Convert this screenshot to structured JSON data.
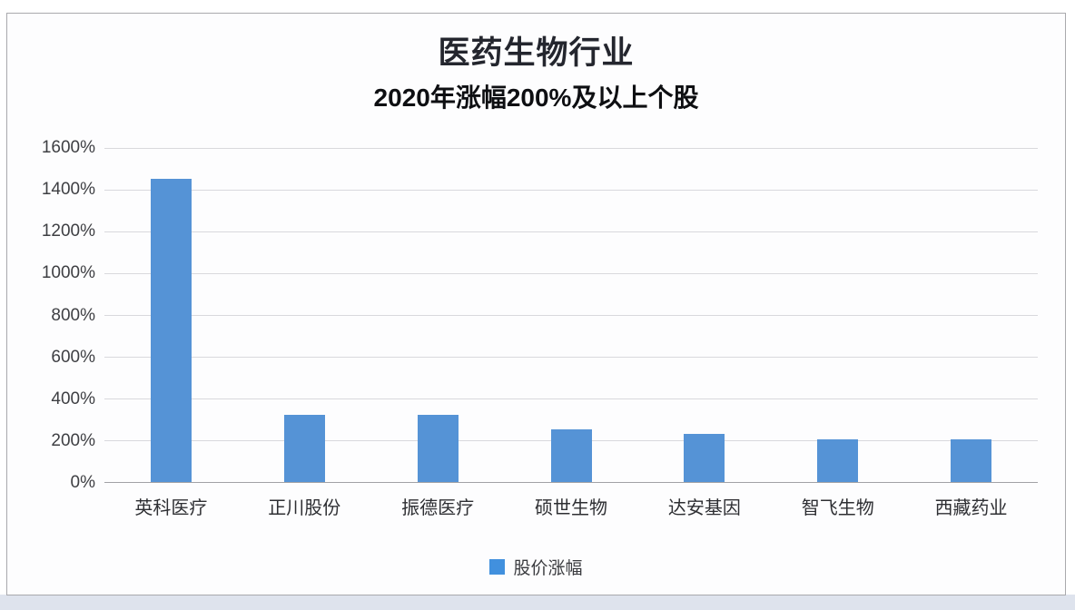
{
  "chart_data": {
    "type": "bar",
    "title": "医药生物行业",
    "subtitle": "2020年涨幅200%及以上个股",
    "categories": [
      "英科医疗",
      "正川股份",
      "振德医疗",
      "硕世生物",
      "达安基因",
      "智飞生物",
      "西藏药业"
    ],
    "series": [
      {
        "name": "股价涨幅",
        "values": [
          1450,
          320,
          320,
          250,
          230,
          205,
          205
        ]
      }
    ],
    "ylabel": "",
    "xlabel": "",
    "ylim": [
      0,
      1600
    ],
    "ytick_step": 200,
    "ytick_labels": [
      "0%",
      "200%",
      "400%",
      "600%",
      "800%",
      "1000%",
      "1200%",
      "1400%",
      "1600%"
    ],
    "grid": true,
    "legend_position": "bottom",
    "bar_color": "#5593d6",
    "legend_swatch_color": "#4190de"
  }
}
